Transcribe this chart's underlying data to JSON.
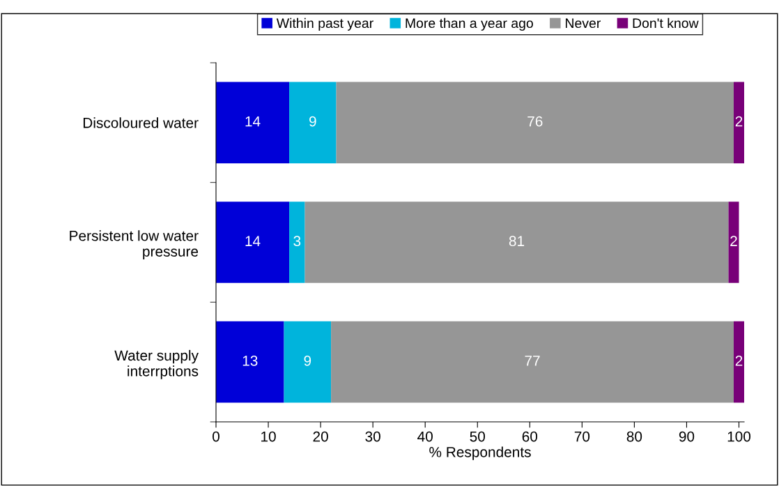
{
  "chart_data": {
    "type": "bar",
    "orientation": "horizontal",
    "stacked": true,
    "data_labels": true,
    "categories": [
      "Discoloured water",
      "Persistent low water\npressure",
      "Water supply\ninterrptions"
    ],
    "series": [
      {
        "name": "Within past year",
        "color": "#0000d8",
        "values": [
          14,
          14,
          13
        ]
      },
      {
        "name": "More than a year ago",
        "color": "#00b4dc",
        "values": [
          9,
          3,
          9
        ]
      },
      {
        "name": "Never",
        "color": "#969696",
        "values": [
          76,
          81,
          77
        ]
      },
      {
        "name": "Don't know",
        "color": "#780078",
        "values": [
          2,
          2,
          2
        ]
      }
    ],
    "xlabel": "% Respondents",
    "xlim": [
      0,
      101
    ],
    "xticks": [
      0,
      10,
      20,
      30,
      40,
      50,
      60,
      70,
      80,
      90,
      100
    ],
    "grid": false,
    "legend": "top"
  }
}
